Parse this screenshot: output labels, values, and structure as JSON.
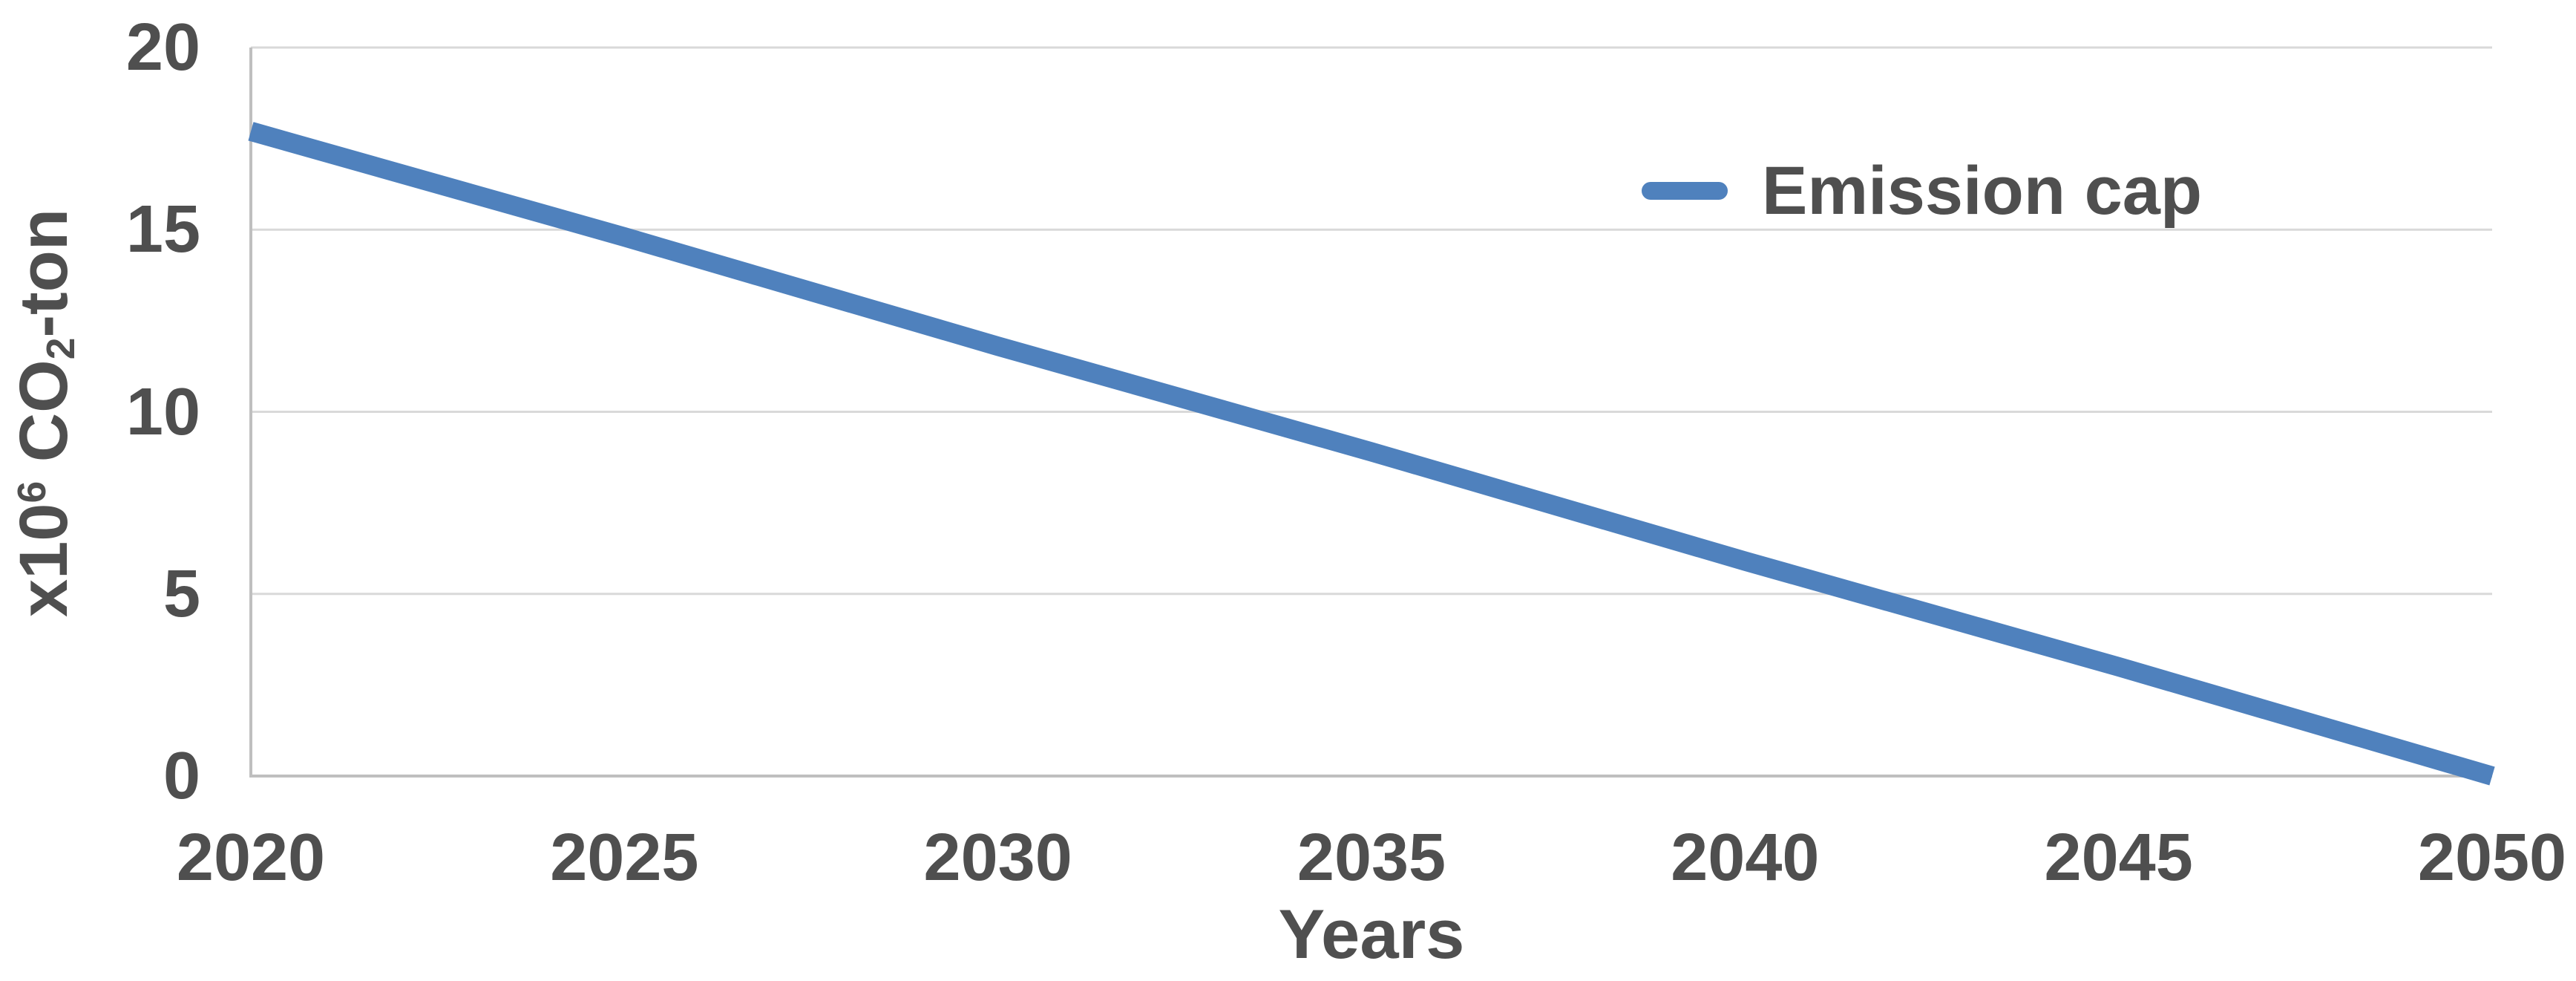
{
  "page": {
    "background_color": "#FFFFFF",
    "text_color": "#4F4F4F"
  },
  "chart_data": {
    "type": "line",
    "title": "",
    "x": [
      2020,
      2025,
      2030,
      2035,
      2040,
      2045,
      2050
    ],
    "series": [
      {
        "name": "Emission cap",
        "color": "#4F81BD",
        "values": [
          17.7,
          14.8,
          11.8,
          8.9,
          5.9,
          3.0,
          0.0
        ]
      }
    ],
    "xlabel": "Years",
    "ylabel": "x10^6 CO2-ton",
    "ylabel_parts": {
      "prefix": "x10",
      "sup": "6",
      "mid": " CO",
      "sub": "2",
      "suffix": "-ton"
    },
    "xlim": [
      2020,
      2050
    ],
    "ylim": [
      0,
      20
    ],
    "xticks": [
      "2020",
      "2025",
      "2030",
      "2035",
      "2040",
      "2045",
      "2050"
    ],
    "yticks": [
      0,
      5,
      10,
      15,
      20
    ],
    "grid": "horizontal gridlines on",
    "legend_position": "top-right inside plot",
    "colors": {
      "gridline": "#D9D9D9",
      "axis_line": "#BFBFBF",
      "tick_text": "#4F4F4F"
    }
  }
}
